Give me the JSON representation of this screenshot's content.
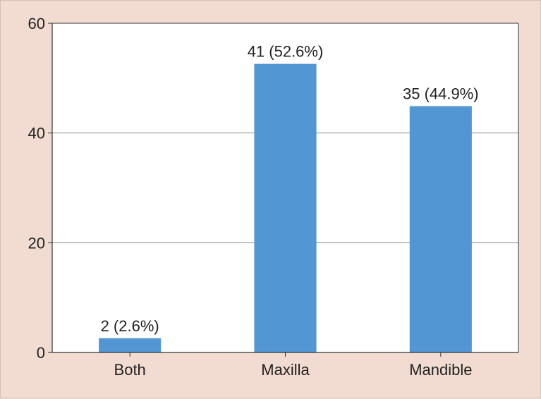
{
  "chart_data": {
    "type": "bar",
    "categories": [
      "Both",
      "Maxilla",
      "Mandible"
    ],
    "values": [
      2.6,
      52.6,
      44.9
    ],
    "data_labels": [
      "2 (2.6%)",
      "41 (52.6%)",
      "35 (44.9%)"
    ],
    "title": "",
    "xlabel": "",
    "ylabel": "",
    "ylim": [
      0,
      60
    ],
    "yticks": [
      "0",
      "20",
      "40",
      "60"
    ],
    "grid": true,
    "legend": "none",
    "colors": {
      "bar": "#5297d3",
      "background": "#f2dcd2",
      "plot_area": "#ffffff",
      "grid": "#8a8a8a"
    }
  }
}
